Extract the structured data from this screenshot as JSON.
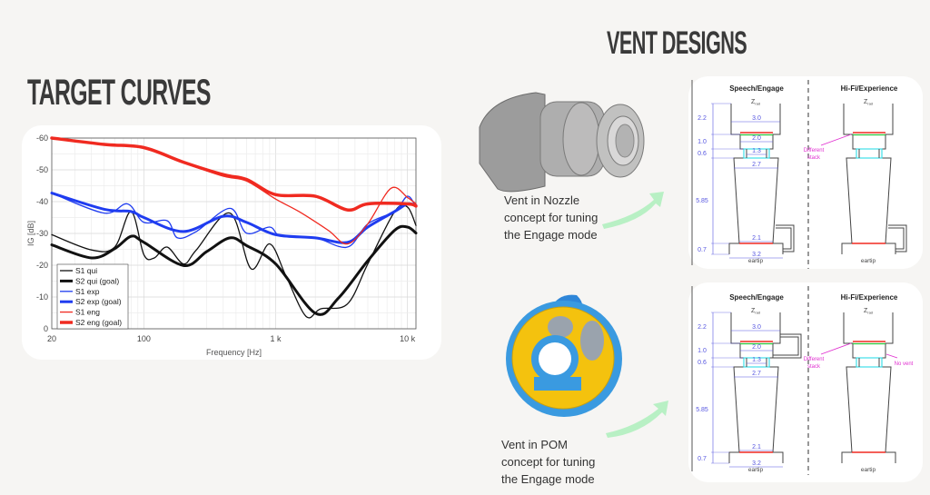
{
  "headings": {
    "target_curves": "TARGET CURVES",
    "vent_designs": "VENT DESIGNS"
  },
  "captions": {
    "nozzle": [
      "Vent in Nozzle",
      "concept for tuning",
      "the Engage mode"
    ],
    "pom": [
      "Vent in POM",
      "concept for tuning",
      "the Engage mode"
    ]
  },
  "diagrams": {
    "left_title": "Speech/Engage",
    "right_title": "Hi-Fi/Experience",
    "z_label": "Z",
    "z_sub": "rad",
    "eartip": "eartip",
    "dims_vertical": [
      "2.2",
      "1.0",
      "0.6",
      "5.85",
      "0.7"
    ],
    "dims_horizontal": [
      "3.0",
      "2.0",
      "1.3",
      "2.7",
      "2.1",
      "3.2"
    ],
    "annotation_stack": [
      "Different",
      "stack"
    ],
    "annotation_no_vent": "No vent"
  },
  "colors": {
    "red": "#f02a20",
    "blue": "#1f3cf0",
    "black": "#111111",
    "dim_blue": "#4b4bd8",
    "magenta": "#e030d0",
    "cyan": "#3fe0e8",
    "green": "#2bc43b"
  },
  "chart_data": {
    "type": "line",
    "title": "",
    "xlabel": "Frequency [Hz]",
    "ylabel": "IG [dB]",
    "xscale": "log",
    "xlim": [
      20,
      11600
    ],
    "ylim": [
      0,
      -60
    ],
    "xticks": [
      {
        "v": 20,
        "label": "20"
      },
      {
        "v": 100,
        "label": "100"
      },
      {
        "v": 1000,
        "label": "1 k"
      },
      {
        "v": 10000,
        "label": "10 k"
      }
    ],
    "yticks": [
      {
        "v": -60,
        "label": "-60"
      },
      {
        "v": -50,
        "label": "-50"
      },
      {
        "v": -40,
        "label": "-40"
      },
      {
        "v": -30,
        "label": "-30"
      },
      {
        "v": -20,
        "label": "-20"
      },
      {
        "v": -10,
        "label": "-10"
      },
      {
        "v": 0,
        "label": "0"
      }
    ],
    "grid": true,
    "legend_position": "bottom-left",
    "series": [
      {
        "name": "S1 qui",
        "color": "#111111",
        "width": 1.3,
        "x": [
          20,
          40,
          60,
          80,
          100,
          120,
          150,
          200,
          250,
          450,
          650,
          900,
          1200,
          1700,
          2200,
          3500,
          5000,
          8000,
          10000,
          11600
        ],
        "y": [
          -29.6,
          -24.8,
          -25.7,
          -36.9,
          -23.3,
          -22.3,
          -25.7,
          -20.4,
          -24.8,
          -36.4,
          -18.9,
          -26.7,
          -16.5,
          -3.9,
          -6.3,
          -7.8,
          -20.4,
          -36.9,
          -38.3,
          -32.5
        ]
      },
      {
        "name": "S2 qui (goal)",
        "color": "#111111",
        "width": 3,
        "x": [
          20,
          40,
          60,
          80,
          100,
          200,
          300,
          450,
          600,
          1000,
          2000,
          3000,
          5000,
          8000,
          10000,
          11600
        ],
        "y": [
          -26.4,
          -22.3,
          -25.2,
          -29.1,
          -27.2,
          -19.9,
          -24.3,
          -28.6,
          -26.2,
          -20.4,
          -4.9,
          -9.7,
          -21.4,
          -31,
          -32,
          -30.1
        ]
      },
      {
        "name": "S1 exp",
        "color": "#1f3cf0",
        "width": 1.3,
        "x": [
          20,
          50,
          75,
          100,
          150,
          180,
          250,
          450,
          600,
          900,
          1100,
          2000,
          3500,
          5000,
          8000,
          10000,
          11600
        ],
        "y": [
          -42.7,
          -36.4,
          -39.3,
          -33.5,
          -34,
          -28.6,
          -30.6,
          -37.9,
          -30.1,
          -32,
          -29.1,
          -28.6,
          -25.7,
          -33,
          -37,
          -41.7,
          -38.3
        ]
      },
      {
        "name": "S2 exp (goal)",
        "color": "#1f3cf0",
        "width": 3,
        "x": [
          20,
          50,
          80,
          100,
          200,
          400,
          600,
          1000,
          2000,
          3500,
          5000,
          8000,
          10000,
          11600
        ],
        "y": [
          -42.7,
          -37.6,
          -36.9,
          -35,
          -30.6,
          -35.4,
          -33.5,
          -29.6,
          -28.6,
          -27.2,
          -32,
          -36.9,
          -39.3,
          -38.8
        ]
      },
      {
        "name": "S1 eng",
        "color": "#f02a20",
        "width": 1.3,
        "x": [
          20,
          50,
          100,
          200,
          400,
          600,
          1000,
          1500,
          2500,
          3500,
          5000,
          7500,
          10000,
          11600
        ],
        "y": [
          -60,
          -58,
          -56.8,
          -52.2,
          -48,
          -46.5,
          -40.8,
          -36.9,
          -31,
          -26.7,
          -33,
          -44.2,
          -41.3,
          -39.3
        ]
      },
      {
        "name": "S2 eng (goal)",
        "color": "#f02a20",
        "width": 3.5,
        "x": [
          20,
          50,
          100,
          200,
          400,
          600,
          1000,
          2000,
          3500,
          5000,
          10000,
          11600
        ],
        "y": [
          -60,
          -58,
          -57,
          -52.4,
          -48.5,
          -47,
          -42.2,
          -41.7,
          -37.4,
          -39.3,
          -39.3,
          -38.6
        ]
      }
    ]
  }
}
